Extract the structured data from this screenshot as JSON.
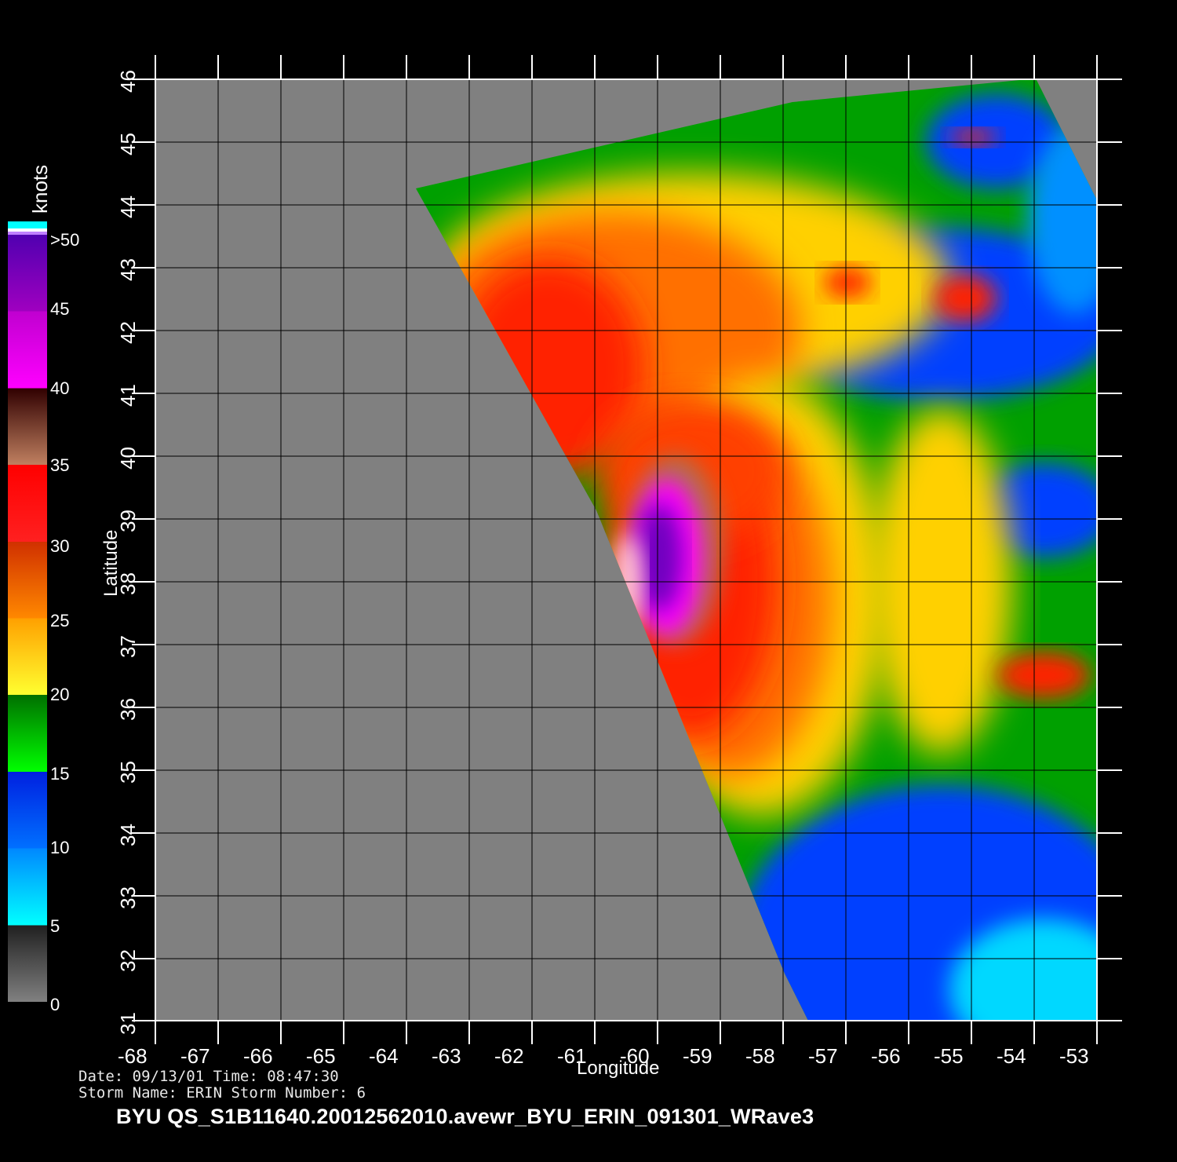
{
  "plot": {
    "xlabel": "Longitude",
    "ylabel": "Latitude",
    "x_ticks": [
      "-68",
      "-67",
      "-66",
      "-65",
      "-64",
      "-63",
      "-62",
      "-61",
      "-60",
      "-59",
      "-58",
      "-57",
      "-56",
      "-55",
      "-54",
      "-53"
    ],
    "y_ticks": [
      "31",
      "32",
      "33",
      "34",
      "35",
      "36",
      "37",
      "38",
      "39",
      "40",
      "41",
      "42",
      "43",
      "44",
      "45",
      "46"
    ],
    "lon_range": [
      -68,
      -53
    ],
    "lat_range": [
      31,
      46
    ],
    "land_color": "#808080",
    "grid_color": "#000000"
  },
  "colorbar": {
    "unit": "knots",
    "labels": [
      ">50",
      "45",
      "40",
      "35",
      "30",
      "25",
      "20",
      "15",
      "10",
      "5",
      "0"
    ],
    "bands": [
      {
        "range": "0-5",
        "color": "#404040"
      },
      {
        "range": "5-10",
        "color": "#00e8ff"
      },
      {
        "range": "10-15",
        "color": "#0040ff"
      },
      {
        "range": "15-20",
        "color": "#00b000"
      },
      {
        "range": "20-25",
        "color": "#ffd000"
      },
      {
        "range": "25-30",
        "color": "#ff7000"
      },
      {
        "range": "30-35",
        "color": "#ff1000"
      },
      {
        "range": "35-40",
        "color": "#b07050"
      },
      {
        "range": "40-45",
        "color": "#ff00ff"
      },
      {
        "range": "45-50",
        "color": "#a000d0"
      }
    ]
  },
  "meta": {
    "date_line": "Date: 09/13/01   Time: 08:47:30",
    "storm_line": "Storm  Name: ERIN   Storm  Number: 6"
  },
  "title": "BYU  QS_S1B11640.20012562010.avewr_BYU_ERIN_091301_WRave3"
}
